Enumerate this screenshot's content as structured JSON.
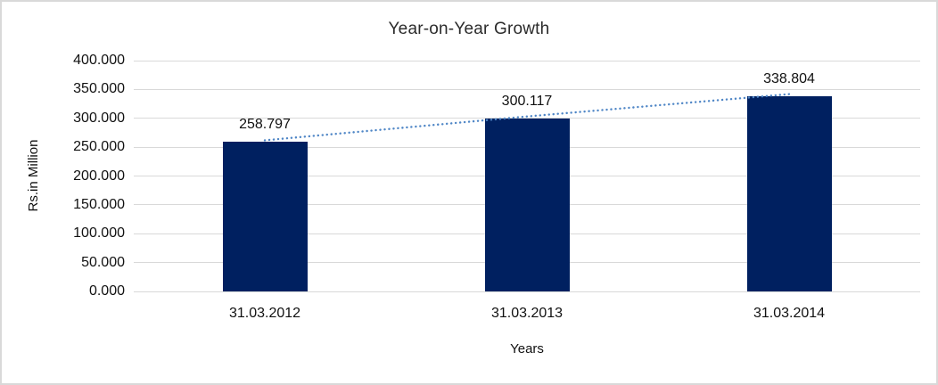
{
  "frame": {
    "border_color": "#d9d9d9",
    "background": "#ffffff"
  },
  "chart_data": {
    "type": "bar",
    "title": "Year-on-Year Growth",
    "xlabel": "Years",
    "ylabel": "Rs.in Million",
    "categories": [
      "31.03.2012",
      "31.03.2013",
      "31.03.2014"
    ],
    "values": [
      258.797,
      300.117,
      338.804
    ],
    "data_labels": [
      "258.797",
      "300.117",
      "338.804"
    ],
    "ylim": [
      0,
      400
    ],
    "y_tick_values": [
      0,
      50,
      100,
      150,
      200,
      250,
      300,
      350,
      400
    ],
    "y_tick_labels": [
      "0.000",
      "50.000",
      "100.000",
      "150.000",
      "200.000",
      "250.000",
      "300.000",
      "350.000",
      "400.000"
    ],
    "grid": true,
    "legend_position": "none",
    "bar_color": "#002060",
    "gridline_color": "#d9d9d9",
    "trendline": {
      "type": "linear",
      "style": "dotted",
      "color": "#4f86c6",
      "connects": "bar-top centers"
    }
  }
}
